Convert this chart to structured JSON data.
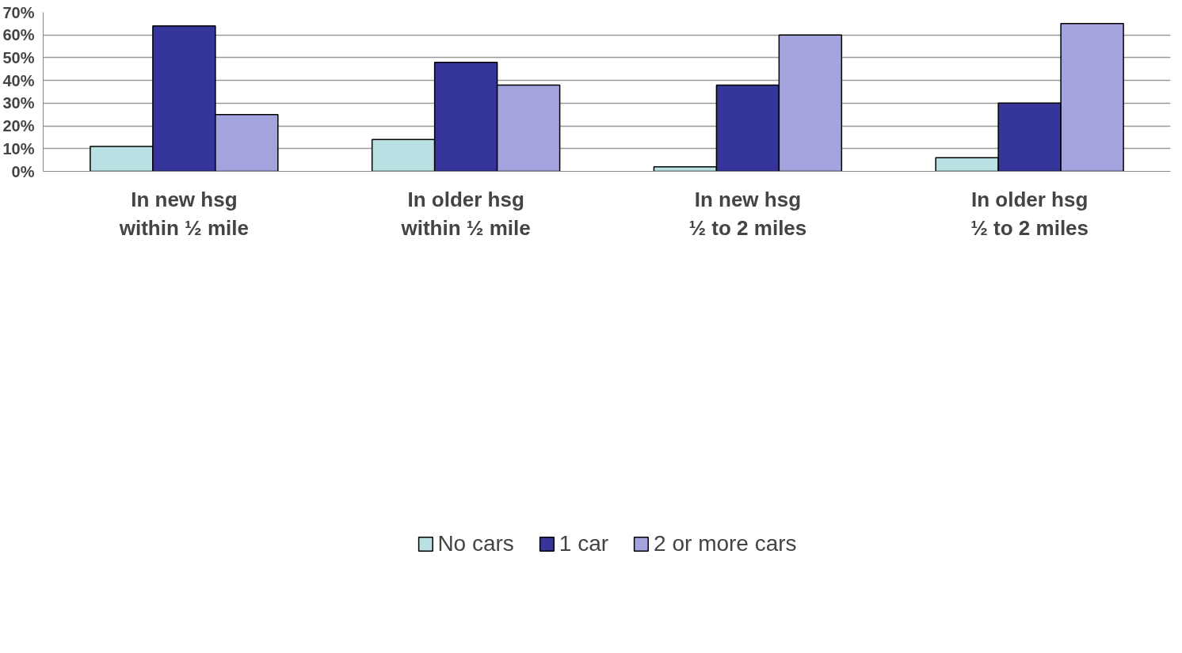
{
  "chart_data": {
    "type": "bar",
    "categories": [
      "In new hsg\nwithin ½ mile",
      "In older hsg\nwithin ½ mile",
      "In new hsg\n½ to 2 miles",
      "In older hsg\n½ to 2 miles"
    ],
    "series": [
      {
        "name": "No cars",
        "color": "#b9e0e2",
        "values": [
          11,
          14,
          2,
          6
        ]
      },
      {
        "name": "1 car",
        "color": "#35359a",
        "values": [
          64,
          48,
          38,
          30
        ]
      },
      {
        "name": "2 or more cars",
        "color": "#a3a3de",
        "values": [
          25,
          38,
          60,
          65
        ]
      }
    ],
    "ylim": [
      0,
      70
    ],
    "yticks": [
      {
        "value": 0,
        "label": "0%"
      },
      {
        "value": 10,
        "label": "10%"
      },
      {
        "value": 20,
        "label": "20%"
      },
      {
        "value": 30,
        "label": "30%"
      },
      {
        "value": 40,
        "label": "40%"
      },
      {
        "value": 50,
        "label": "50%"
      },
      {
        "value": 60,
        "label": "60%"
      },
      {
        "value": 70,
        "label": "70%"
      }
    ],
    "grid": "y",
    "legend": "bottom"
  }
}
